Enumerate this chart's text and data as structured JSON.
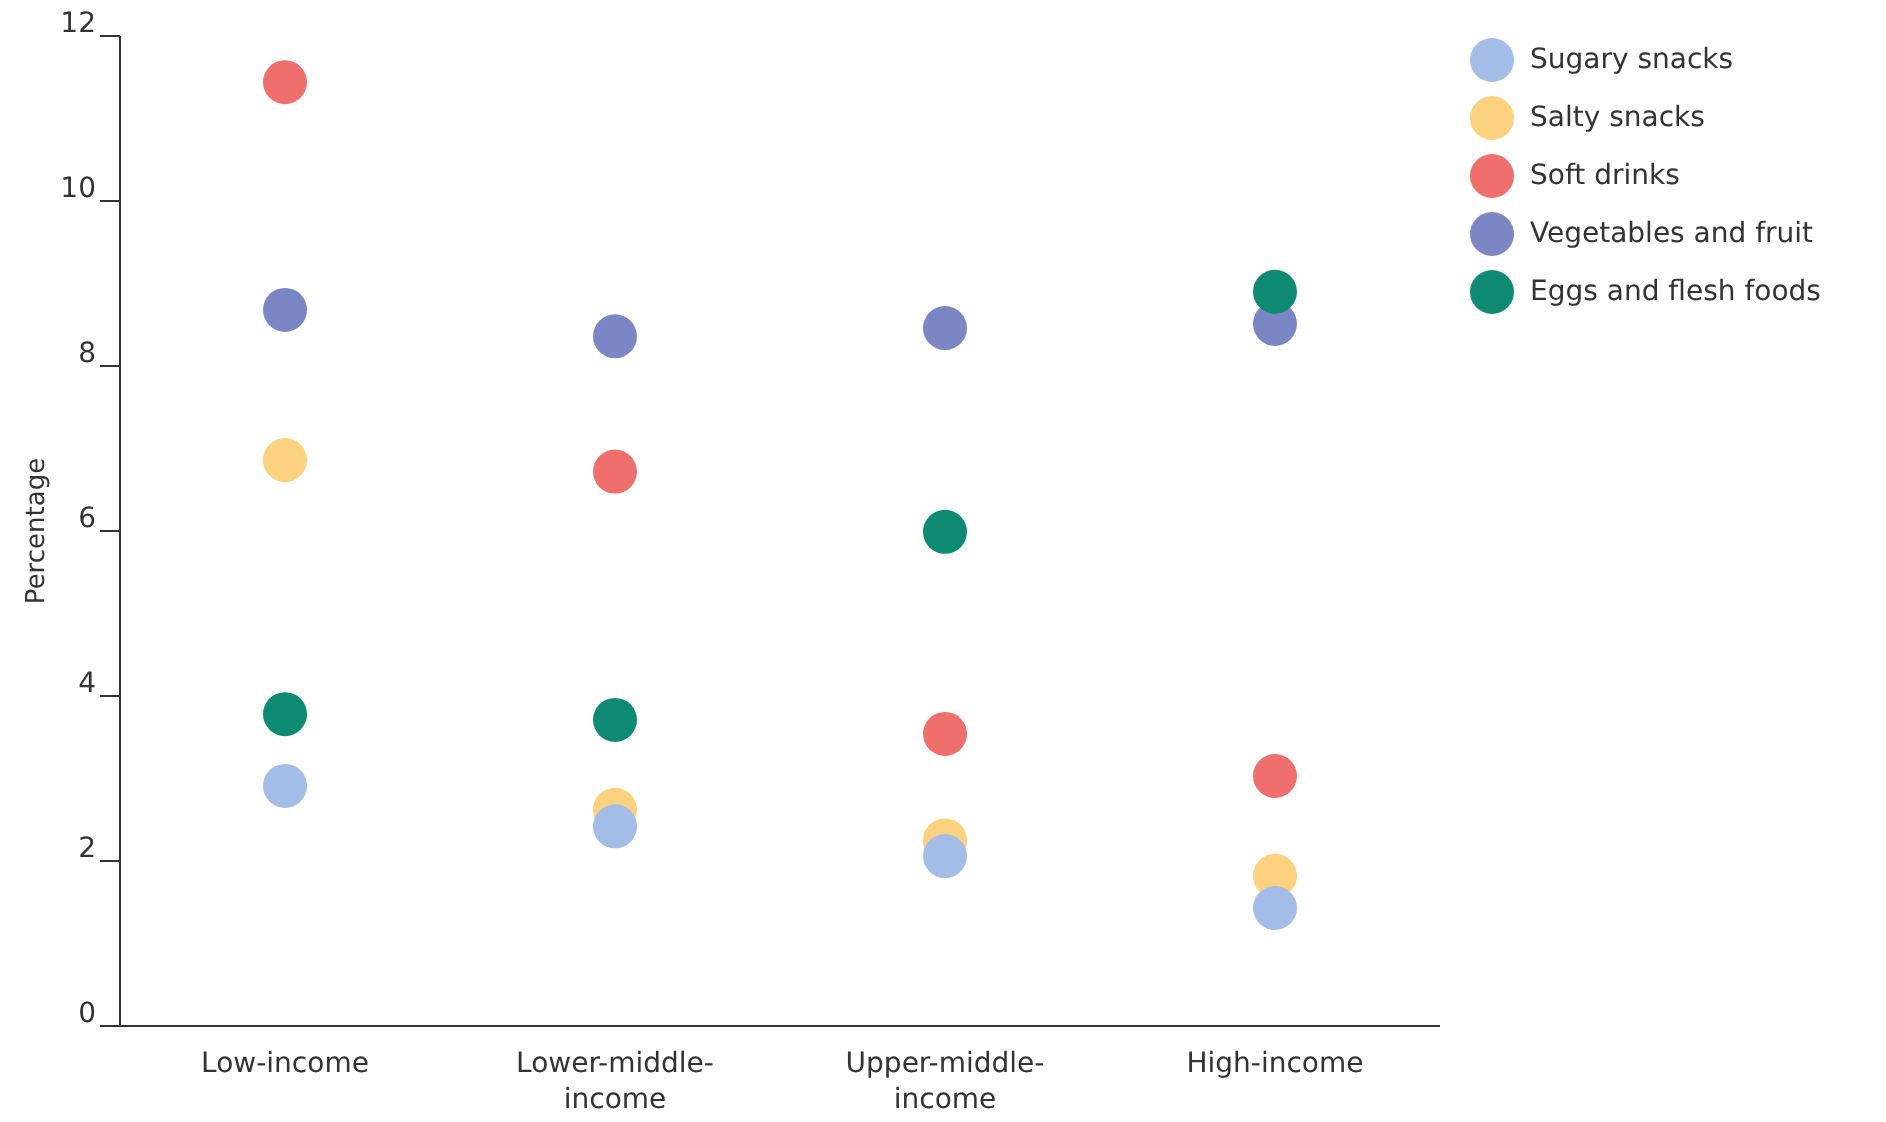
{
  "chart_data": {
    "type": "scatter",
    "ylabel": "Percentage",
    "categories": [
      "Low-income",
      "Lower-middle-income",
      "Upper-middle-income",
      "High-income"
    ],
    "ylim": [
      0,
      12
    ],
    "yticks": [
      0,
      2,
      4,
      6,
      8,
      10,
      12
    ],
    "grid": false,
    "legend": "top right",
    "marker": "circle",
    "series": [
      {
        "name": "Sugary snacks",
        "color": "#a3bde6",
        "values": [
          2.91,
          2.42,
          2.06,
          1.43
        ]
      },
      {
        "name": "Salty snacks",
        "color": "#fcd17f",
        "values": [
          6.86,
          2.62,
          2.25,
          1.82
        ]
      },
      {
        "name": "Soft drinks",
        "color": "#ef6f6c",
        "values": [
          11.44,
          6.72,
          3.54,
          3.03
        ]
      },
      {
        "name": "Vegetables and fruit",
        "color": "#7b86c4",
        "values": [
          8.68,
          8.36,
          8.46,
          8.51
        ]
      },
      {
        "name": "Eggs and flesh foods",
        "color": "#0f8a72",
        "values": [
          3.78,
          3.71,
          5.99,
          8.9
        ]
      }
    ]
  }
}
